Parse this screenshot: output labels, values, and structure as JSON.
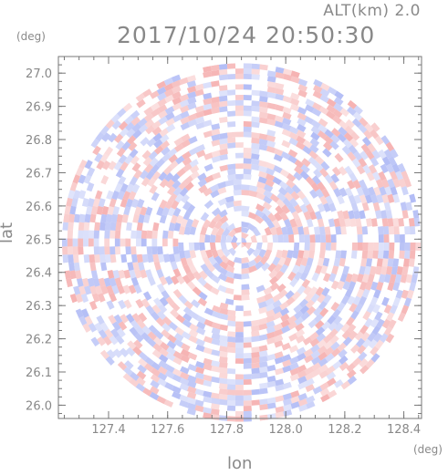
{
  "header": {
    "altitude_label": "ALT(km) 2.0",
    "datetime": "2017/10/24 20:50:30"
  },
  "axes": {
    "x_unit": "(deg)",
    "y_unit": "(deg)",
    "xlabel": "lon",
    "ylabel": "lat"
  },
  "chart_data": {
    "type": "heatmap",
    "xlabel": "lon",
    "ylabel": "lat",
    "xlim": [
      127.23,
      128.46
    ],
    "ylim": [
      25.96,
      27.05
    ],
    "x_ticks": [
      "127.4",
      "127.6",
      "127.8",
      "128.0",
      "128.2",
      "128.4"
    ],
    "y_ticks": [
      "26.0",
      "26.1",
      "26.2",
      "26.3",
      "26.4",
      "26.5",
      "26.6",
      "26.7",
      "26.8",
      "26.9",
      "27.0"
    ],
    "center": {
      "lon": 127.85,
      "lat": 26.49
    },
    "radius_deg_lat": 0.54,
    "colors": {
      "positive": "#f4a6a6",
      "negative": "#a6b2f4",
      "neutral": "#ffffff",
      "axis": "#777777"
    }
  }
}
